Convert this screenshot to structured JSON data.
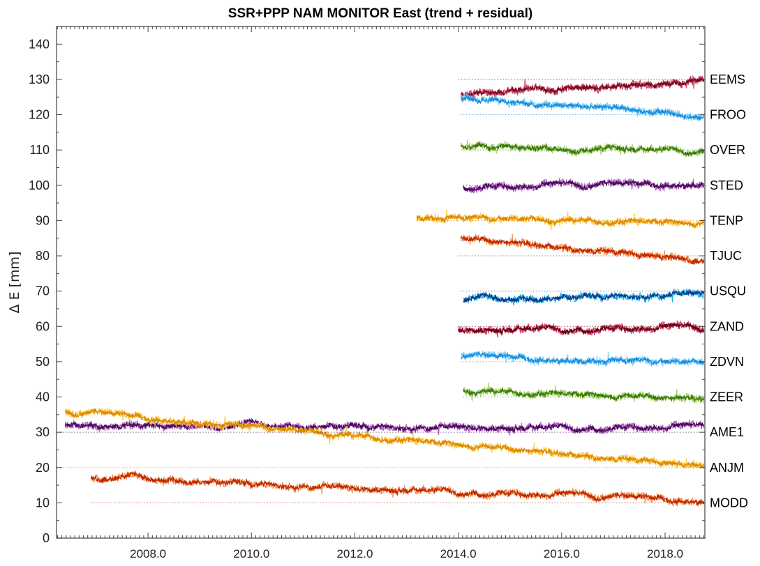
{
  "chart_data": {
    "type": "line",
    "title": "SSR+PPP NAM MONITOR East  (trend + residual)",
    "xlabel": "",
    "ylabel": "Δ E [mm]",
    "xlim": [
      2006.23,
      2018.77
    ],
    "ylim": [
      0,
      145
    ],
    "x_ticks": [
      2008.0,
      2010.0,
      2012.0,
      2014.0,
      2016.0,
      2018.0
    ],
    "x_tick_labels": [
      "2008.0",
      "2010.0",
      "2012.0",
      "2014.0",
      "2016.0",
      "2018.0"
    ],
    "y_ticks": [
      0,
      10,
      20,
      30,
      40,
      50,
      60,
      70,
      80,
      90,
      100,
      110,
      120,
      130,
      140
    ],
    "y_tick_labels": [
      "0",
      "10",
      "20",
      "30",
      "40",
      "50",
      "60",
      "70",
      "80",
      "90",
      "100",
      "110",
      "120",
      "130",
      "140"
    ],
    "grid": false,
    "legend": "station labels at right edge",
    "series": [
      {
        "name": "EEMS",
        "baseline": 130,
        "baseline_start": 2014.0,
        "x_start": 2014.05,
        "x_end": 2018.75,
        "y_start": 125.5,
        "y_end": 129.5,
        "color_trend": "#7a0a1e",
        "color_resid": "#c8406a"
      },
      {
        "name": "FROO",
        "baseline": 120,
        "baseline_start": 2014.05,
        "x_start": 2014.05,
        "x_end": 2018.75,
        "y_start": 124.5,
        "y_end": 119.5,
        "color_trend": "#1a8fe0",
        "color_resid": "#7fd0f5"
      },
      {
        "name": "OVER",
        "baseline": 110,
        "baseline_start": 2014.05,
        "x_start": 2014.05,
        "x_end": 2018.75,
        "y_start": 111.0,
        "y_end": 109.8,
        "color_trend": "#3a7a0a",
        "color_resid": "#a5d06a"
      },
      {
        "name": "STED",
        "baseline": 100,
        "baseline_start": 2014.1,
        "x_start": 2014.1,
        "x_end": 2018.75,
        "y_start": 99.5,
        "y_end": 100.3,
        "color_trend": "#4a0a5a",
        "color_resid": "#b060c0"
      },
      {
        "name": "TENP",
        "baseline": 90,
        "baseline_start": 2013.2,
        "x_start": 2013.2,
        "x_end": 2018.75,
        "y_start": 90.8,
        "y_end": 89.3,
        "color_trend": "#e08800",
        "color_resid": "#f8cc50"
      },
      {
        "name": "TJUC",
        "baseline": 80,
        "baseline_start": 2014.0,
        "x_start": 2014.05,
        "x_end": 2018.75,
        "y_start": 85.0,
        "y_end": 78.8,
        "color_trend": "#c02800",
        "color_resid": "#f09050"
      },
      {
        "name": "USQU",
        "baseline": 70,
        "baseline_start": 2014.05,
        "x_start": 2014.1,
        "x_end": 2018.75,
        "y_start": 67.3,
        "y_end": 69.5,
        "color_trend": "#0a3a90",
        "color_resid": "#20b0e0"
      },
      {
        "name": "ZAND",
        "baseline": 60,
        "baseline_start": 2014.0,
        "x_start": 2014.0,
        "x_end": 2018.75,
        "y_start": 59.3,
        "y_end": 59.5,
        "color_trend": "#6a0010",
        "color_resid": "#d04070"
      },
      {
        "name": "ZDVN",
        "baseline": 50,
        "baseline_start": 2014.05,
        "x_start": 2014.05,
        "x_end": 2018.75,
        "y_start": 51.3,
        "y_end": 49.6,
        "color_trend": "#1a8fe0",
        "color_resid": "#7fd0f5"
      },
      {
        "name": "ZEER",
        "baseline": 40,
        "baseline_start": 2014.1,
        "x_start": 2014.1,
        "x_end": 2018.75,
        "y_start": 41.8,
        "y_end": 39.4,
        "color_trend": "#3a7a0a",
        "color_resid": "#a5d06a"
      },
      {
        "name": "AME1",
        "baseline": 30,
        "baseline_start": 2006.25,
        "x_start": 2006.4,
        "x_end": 2018.75,
        "y_start": 32.0,
        "y_end": 31.3,
        "color_trend": "#4a0a5a",
        "color_resid": "#b060c0"
      },
      {
        "name": "ANJM",
        "baseline": 20,
        "baseline_start": 2006.25,
        "x_start": 2006.4,
        "x_end": 2018.75,
        "y_start": 36.0,
        "y_end": 20.5,
        "color_trend": "#e08800",
        "color_resid": "#f8cc50"
      },
      {
        "name": "MODD",
        "baseline": 10,
        "baseline_start": 2006.9,
        "x_start": 2006.9,
        "x_end": 2018.75,
        "y_start": 17.3,
        "y_end": 10.5,
        "color_trend": "#c02800",
        "color_resid": "#f09050"
      }
    ]
  }
}
